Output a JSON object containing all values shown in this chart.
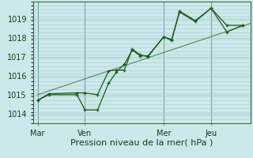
{
  "background_color": "#cce8ea",
  "grid_color": "#aaccce",
  "line_color": "#1a5c1a",
  "x_tick_labels": [
    "Mar",
    "Ven",
    "Mer",
    "Jeu"
  ],
  "x_tick_positions": [
    0,
    3,
    8,
    11
  ],
  "xlabel": "Pression niveau de la mer( hPa )",
  "ylim": [
    1013.5,
    1019.8
  ],
  "yticks": [
    1014,
    1015,
    1016,
    1017,
    1018,
    1019
  ],
  "vline_positions": [
    0,
    3,
    8,
    11
  ],
  "xlim": [
    -0.3,
    13.5
  ],
  "series1_x": [
    0,
    0.7,
    2.5,
    3.0,
    3.8,
    4.5,
    5.0,
    5.5,
    6.0,
    6.5,
    7.0,
    8.0,
    8.5,
    9.0,
    10.0,
    11.0,
    12.0,
    13.0
  ],
  "series1_y": [
    1014.7,
    1015.0,
    1015.0,
    1014.2,
    1014.2,
    1015.6,
    1016.2,
    1016.6,
    1017.35,
    1017.05,
    1017.05,
    1018.05,
    1017.85,
    1019.35,
    1018.85,
    1019.55,
    1018.65,
    1018.65
  ],
  "series2_x": [
    0,
    0.7,
    2.5,
    3.0,
    3.8,
    4.5,
    5.0,
    5.5,
    6.0,
    6.5,
    7.0,
    8.0,
    8.5,
    9.0,
    10.0,
    11.0,
    12.0,
    13.0
  ],
  "series2_y": [
    1014.7,
    1015.05,
    1015.1,
    1015.1,
    1015.0,
    1016.25,
    1016.3,
    1016.3,
    1017.4,
    1017.1,
    1017.0,
    1018.05,
    1017.9,
    1019.4,
    1018.9,
    1019.55,
    1018.3,
    1018.65
  ],
  "trend_x": [
    0,
    13.5
  ],
  "trend_y": [
    1015.0,
    1018.75
  ],
  "xlabel_fontsize": 8,
  "tick_fontsize": 7
}
